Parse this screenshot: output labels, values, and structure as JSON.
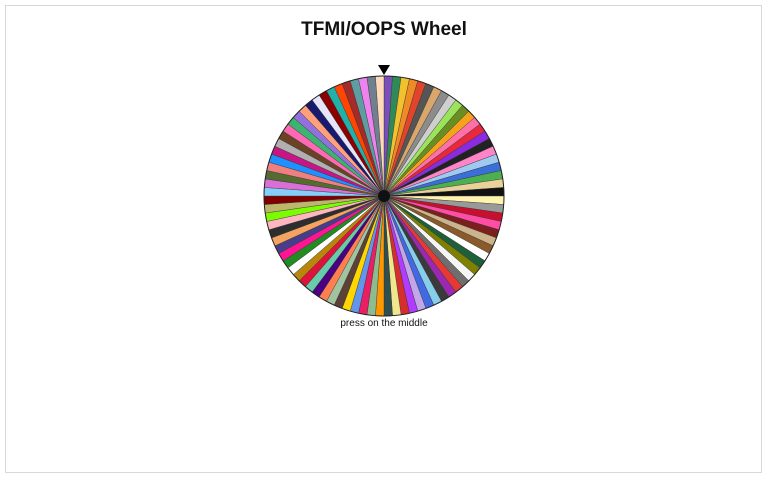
{
  "header": {
    "title": "TFMI/OOPS Wheel"
  },
  "wheel": {
    "hint": "press on the middle",
    "segment_colors": [
      "#7a4fb8",
      "#2e8b57",
      "#f2c12e",
      "#f08a24",
      "#e0442b",
      "#555555",
      "#d9a66b",
      "#8c8c8c",
      "#cfcfcf",
      "#9be35a",
      "#6b8e23",
      "#f7a21b",
      "#ff6fa8",
      "#e8283c",
      "#8a2be2",
      "#222222",
      "#ff85c8",
      "#9ec9f0",
      "#3b6fd8",
      "#4caf50",
      "#e8d29a",
      "#111111",
      "#fff3b0",
      "#999999",
      "#c8102e",
      "#ff4da6",
      "#7b1e1e",
      "#cdb38b",
      "#8b5a2b",
      "#ffffff",
      "#1f5f3a",
      "#808000",
      "#f5f5f5",
      "#6e6e6e",
      "#e53935",
      "#9c27b0",
      "#3a3a3a",
      "#87ceeb",
      "#4169e1",
      "#c3a6e8",
      "#b03cff",
      "#d62d2d",
      "#f0e68c",
      "#2f4f4f",
      "#ff9800",
      "#8fbc8f",
      "#e91e63",
      "#6495ed",
      "#ffd700",
      "#5d4037",
      "#a0c4a0",
      "#ff7f50",
      "#4b0082",
      "#66cdaa",
      "#dc143c",
      "#b8860b",
      "#ffffff",
      "#228b22",
      "#ff1493",
      "#483d8b",
      "#f4a460",
      "#2e2e2e",
      "#ffb6c1",
      "#7cfc00",
      "#bdb76b",
      "#800000",
      "#87cefa",
      "#da70d6",
      "#556b2f",
      "#f08080",
      "#1e90ff",
      "#c71585",
      "#b0b0b0",
      "#6b4226",
      "#ff69b4",
      "#3cb371",
      "#9370db",
      "#ffa07a",
      "#191970",
      "#e6e6fa",
      "#8b0000",
      "#20b2aa",
      "#ff4500",
      "#a52a2a",
      "#5f9ea0",
      "#ee82ee",
      "#708090",
      "#ffdab9"
    ]
  }
}
